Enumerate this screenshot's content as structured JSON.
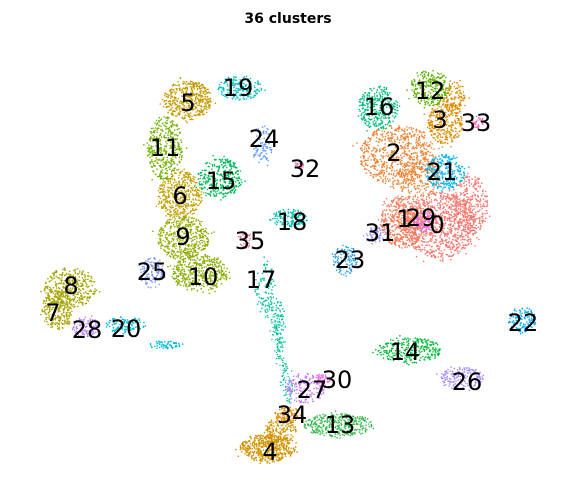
{
  "chart_data": {
    "type": "scatter",
    "title": "36 clusters",
    "xlabel": "",
    "ylabel": "",
    "grid": false,
    "axes_visible": false,
    "legend": "none",
    "clusters": [
      {
        "id": "0",
        "color": "#F8766D"
      },
      {
        "id": "1",
        "color": "#F47E5A"
      },
      {
        "id": "2",
        "color": "#EB8335"
      },
      {
        "id": "3",
        "color": "#DF8B00"
      },
      {
        "id": "4",
        "color": "#D09400"
      },
      {
        "id": "5",
        "color": "#C49A00"
      },
      {
        "id": "6",
        "color": "#C1A100"
      },
      {
        "id": "7",
        "color": "#A9A400"
      },
      {
        "id": "8",
        "color": "#A3A500"
      },
      {
        "id": "9",
        "color": "#94AA00"
      },
      {
        "id": "10",
        "color": "#85AD00"
      },
      {
        "id": "11",
        "color": "#72B000"
      },
      {
        "id": "12",
        "color": "#5BB300"
      },
      {
        "id": "13",
        "color": "#35B94B"
      },
      {
        "id": "14",
        "color": "#00BA38"
      },
      {
        "id": "15",
        "color": "#00BC5A"
      },
      {
        "id": "16",
        "color": "#00BF7D"
      },
      {
        "id": "17",
        "color": "#00C09A"
      },
      {
        "id": "18",
        "color": "#00C0B4"
      },
      {
        "id": "19",
        "color": "#00BFC4"
      },
      {
        "id": "20",
        "color": "#00BBDC"
      },
      {
        "id": "21",
        "color": "#00B3F2"
      },
      {
        "id": "22",
        "color": "#00A9FF"
      },
      {
        "id": "23",
        "color": "#2E9FDF"
      },
      {
        "id": "24",
        "color": "#619CFF"
      },
      {
        "id": "25",
        "color": "#8494FF"
      },
      {
        "id": "26",
        "color": "#A58AFF"
      },
      {
        "id": "27",
        "color": "#C77CFF"
      },
      {
        "id": "28",
        "color": "#B983FF"
      },
      {
        "id": "29",
        "color": "#E76BF3"
      },
      {
        "id": "30",
        "color": "#F564E3"
      },
      {
        "id": "31",
        "color": "#9590FF"
      },
      {
        "id": "32",
        "color": "#FF62BC"
      },
      {
        "id": "33",
        "color": "#FF63B6"
      },
      {
        "id": "34",
        "color": "#E38900"
      },
      {
        "id": "35",
        "color": "#FF6C91"
      }
    ]
  }
}
